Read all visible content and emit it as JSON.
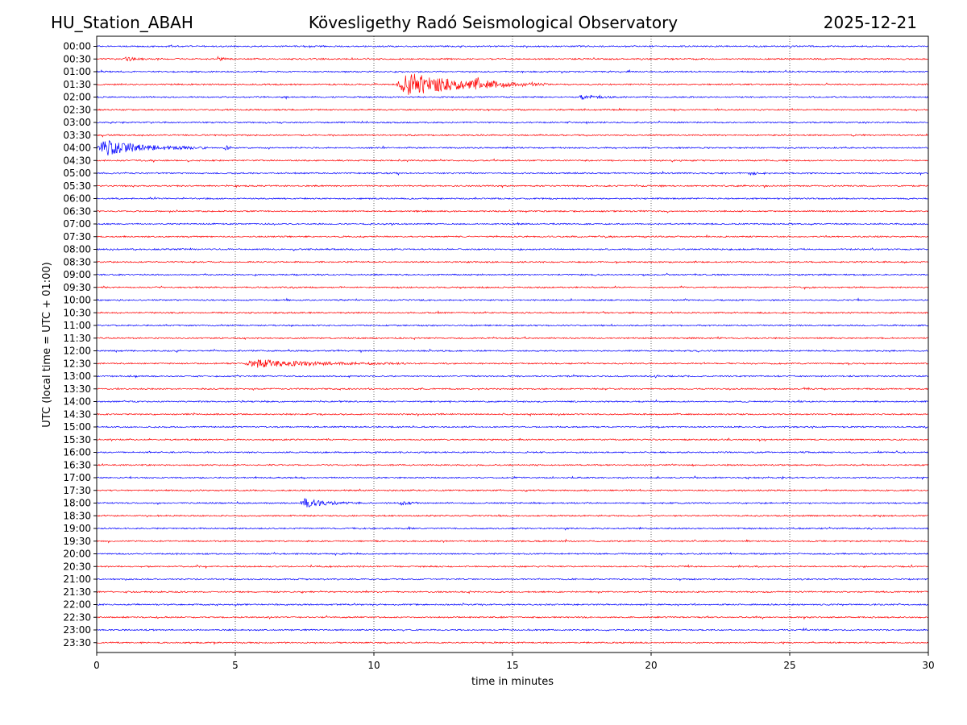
{
  "header": {
    "station": "HU_Station_ABAH",
    "observatory": "Kövesligethy Radó Seismological Observatory",
    "date": "2025-12-21"
  },
  "chart_data": {
    "type": "line",
    "title": "Kövesligethy Radó Seismological Observatory",
    "xlabel": "time in minutes",
    "ylabel": "UTC (local time = UTC + 01:00)",
    "xlim": [
      0,
      30
    ],
    "x_ticks": [
      "0",
      "5",
      "10",
      "15",
      "20",
      "25",
      "30"
    ],
    "x_tick_values": [
      0,
      5,
      10,
      15,
      20,
      25,
      30
    ],
    "grid": "vertical dotted at x ticks",
    "series_colors": [
      "#0000ff",
      "#ff0000"
    ],
    "rows": [
      "00:00",
      "00:30",
      "01:00",
      "01:30",
      "02:00",
      "02:30",
      "03:00",
      "03:30",
      "04:00",
      "04:30",
      "05:00",
      "05:30",
      "06:00",
      "06:30",
      "07:00",
      "07:30",
      "08:00",
      "08:30",
      "09:00",
      "09:30",
      "10:00",
      "10:30",
      "11:00",
      "11:30",
      "12:00",
      "12:30",
      "13:00",
      "13:30",
      "14:00",
      "14:30",
      "15:00",
      "15:30",
      "16:00",
      "16:30",
      "17:00",
      "17:30",
      "18:00",
      "18:30",
      "19:00",
      "19:30",
      "20:00",
      "20:30",
      "21:00",
      "21:30",
      "22:00",
      "22:30",
      "23:00",
      "23:30"
    ],
    "noise_level": 1.0,
    "events": [
      {
        "row": "00:30",
        "start_min": 1.0,
        "duration_min": 0.8,
        "amplitude": 3
      },
      {
        "row": "00:30",
        "start_min": 4.3,
        "duration_min": 0.6,
        "amplitude": 3
      },
      {
        "row": "01:30",
        "start_min": 10.8,
        "duration_min": 5.5,
        "amplitude": 18
      },
      {
        "row": "01:30",
        "start_min": 13.6,
        "duration_min": 1.2,
        "amplitude": 9
      },
      {
        "row": "02:00",
        "start_min": 17.4,
        "duration_min": 1.5,
        "amplitude": 4
      },
      {
        "row": "03:30",
        "start_min": 29.9,
        "duration_min": 0.1,
        "amplitude": 7
      },
      {
        "row": "04:00",
        "start_min": 0.0,
        "duration_min": 4.0,
        "amplitude": 12
      },
      {
        "row": "04:00",
        "start_min": 4.6,
        "duration_min": 0.6,
        "amplitude": 3
      },
      {
        "row": "05:00",
        "start_min": 23.5,
        "duration_min": 0.8,
        "amplitude": 3
      },
      {
        "row": "12:30",
        "start_min": 5.3,
        "duration_min": 6.0,
        "amplitude": 6
      },
      {
        "row": "18:00",
        "start_min": 7.3,
        "duration_min": 2.2,
        "amplitude": 7
      },
      {
        "row": "18:00",
        "start_min": 10.9,
        "duration_min": 0.9,
        "amplitude": 3
      }
    ]
  }
}
